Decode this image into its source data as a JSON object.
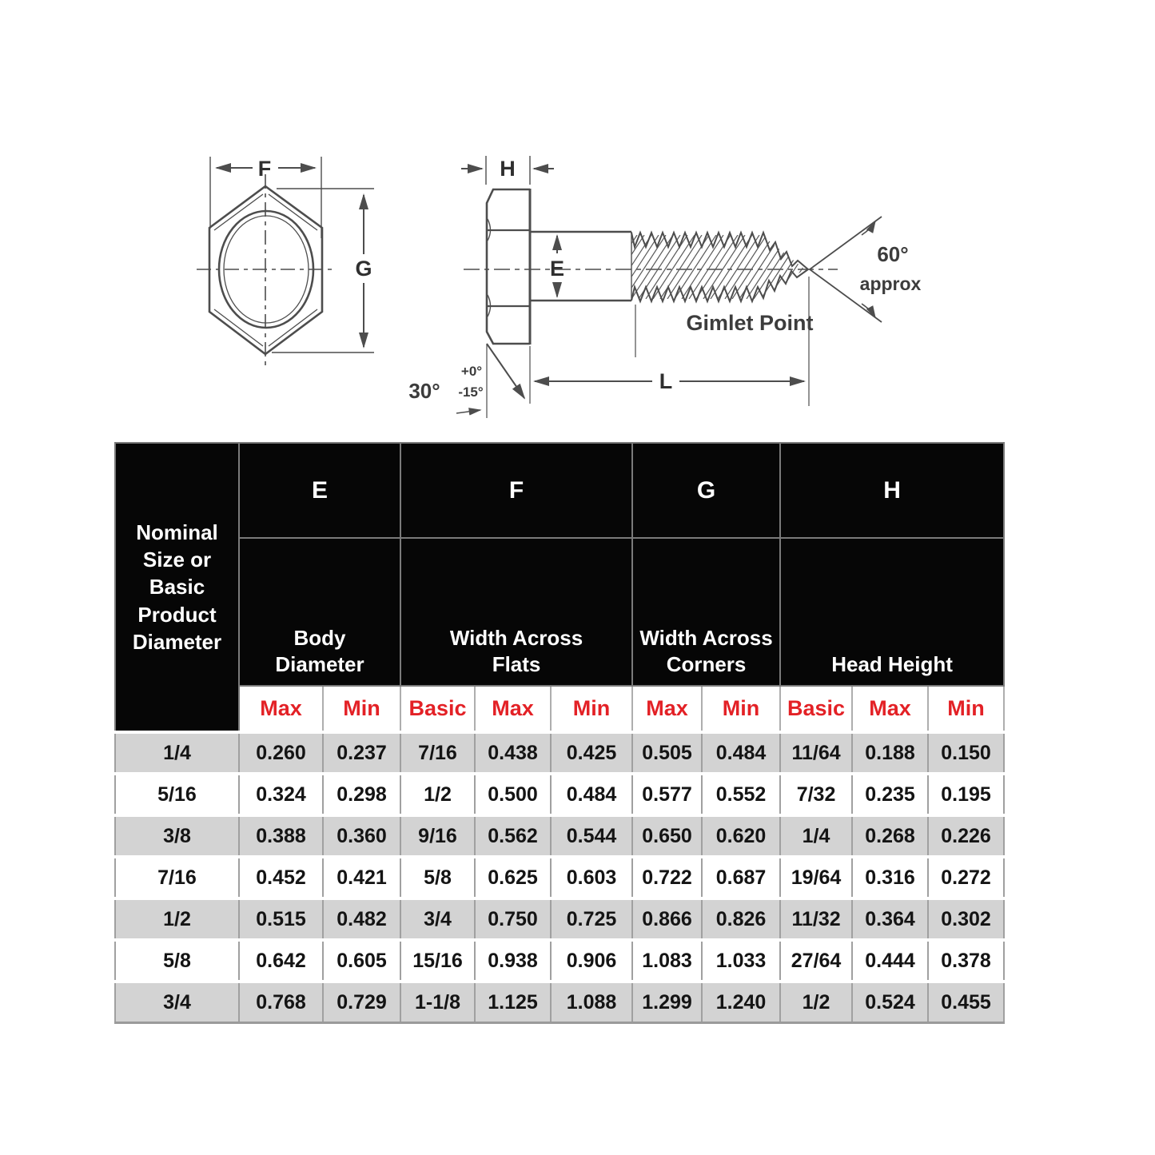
{
  "diagram": {
    "labels": {
      "f": "F",
      "g": "G",
      "h": "H",
      "e": "E",
      "l": "L",
      "chamfer_angle": "30°",
      "tolerance_plus": "+0°",
      "tolerance_minus": "-15°",
      "point_angle": "60°",
      "point_angle_note": "approx",
      "gimlet_point": "Gimlet Point"
    }
  },
  "table": {
    "corner_header": "Nominal Size or Basic Product Diameter",
    "col_groups": [
      {
        "letter": "E",
        "name": "Body Diameter",
        "subs": [
          "Max",
          "Min"
        ]
      },
      {
        "letter": "F",
        "name": "Width Across Flats",
        "subs": [
          "Basic",
          "Max",
          "Min"
        ]
      },
      {
        "letter": "G",
        "name": "Width Across Corners",
        "subs": [
          "Max",
          "Min"
        ]
      },
      {
        "letter": "H",
        "name": "Head Height",
        "subs": [
          "Basic",
          "Max",
          "Min"
        ]
      }
    ],
    "rows": [
      [
        "1/4",
        "0.260",
        "0.237",
        "7/16",
        "0.438",
        "0.425",
        "0.505",
        "0.484",
        "11/64",
        "0.188",
        "0.150"
      ],
      [
        "5/16",
        "0.324",
        "0.298",
        "1/2",
        "0.500",
        "0.484",
        "0.577",
        "0.552",
        "7/32",
        "0.235",
        "0.195"
      ],
      [
        "3/8",
        "0.388",
        "0.360",
        "9/16",
        "0.562",
        "0.544",
        "0.650",
        "0.620",
        "1/4",
        "0.268",
        "0.226"
      ],
      [
        "7/16",
        "0.452",
        "0.421",
        "5/8",
        "0.625",
        "0.603",
        "0.722",
        "0.687",
        "19/64",
        "0.316",
        "0.272"
      ],
      [
        "1/2",
        "0.515",
        "0.482",
        "3/4",
        "0.750",
        "0.725",
        "0.866",
        "0.826",
        "11/32",
        "0.364",
        "0.302"
      ],
      [
        "5/8",
        "0.642",
        "0.605",
        "15/16",
        "0.938",
        "0.906",
        "1.083",
        "1.033",
        "27/64",
        "0.444",
        "0.378"
      ],
      [
        "3/4",
        "0.768",
        "0.729",
        "1-1/8",
        "1.125",
        "1.088",
        "1.299",
        "1.240",
        "1/2",
        "0.524",
        "0.455"
      ]
    ],
    "colors": {
      "header_bg": "#060606",
      "header_text": "#ffffff",
      "subheader_text": "#e32126",
      "row_alt_bg": "#d3d3d3",
      "row_bg": "#ffffff"
    }
  }
}
